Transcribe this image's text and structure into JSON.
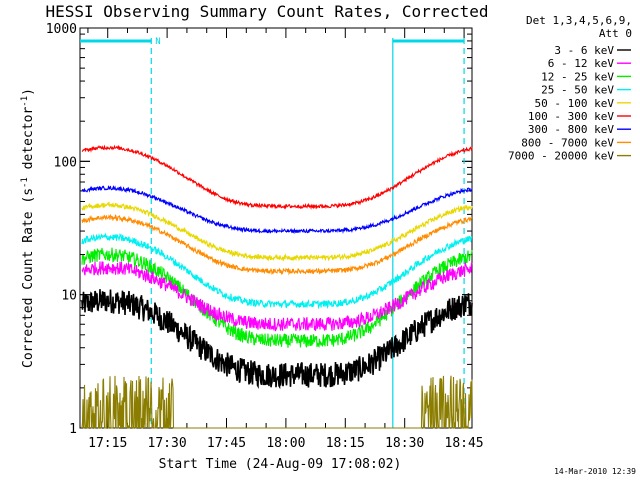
{
  "chart_data": {
    "type": "line",
    "title": "HESSI Observing Summary Count Rates, Corrected",
    "xlabel": "Start Time (24-Aug-09 17:08:02)",
    "ylabel": "Corrected Count Rate (s",
    "ylabel_sup1": "-1",
    "ylabel_mid": " detector",
    "ylabel_sup2": "-1",
    "ylabel_end": ")",
    "y_scale": "log",
    "ylim": [
      1,
      1000
    ],
    "xlim_minutes": [
      "17:08",
      "18:47"
    ],
    "x_ticks": [
      "17:15",
      "17:30",
      "17:45",
      "18:00",
      "18:15",
      "18:30",
      "18:45"
    ],
    "y_ticks": [
      "1",
      "10",
      "100",
      "1000"
    ],
    "legend": {
      "header1": "Det 1,3,4,5,6,9,",
      "header2": "Att 0",
      "placement": "right"
    },
    "flags": {
      "label": "N",
      "boundaries": [
        "17:26",
        "18:27",
        "18:45"
      ],
      "bars": [
        [
          "17:08",
          "17:26"
        ],
        [
          "18:27",
          "18:45"
        ]
      ],
      "color": "#00d8e8"
    },
    "series": [
      {
        "name": "3 - 6 keV",
        "color": "#000000",
        "peak": 9,
        "base": 2.5,
        "noise": 0.22
      },
      {
        "name": "6 - 12 keV",
        "color": "#ff00ff",
        "peak": 16,
        "base": 6,
        "noise": 0.12
      },
      {
        "name": "12 - 25 keV",
        "color": "#00ee00",
        "peak": 20,
        "base": 4.5,
        "noise": 0.12
      },
      {
        "name": "25 - 50 keV",
        "color": "#00f0f0",
        "peak": 27,
        "base": 8.5,
        "noise": 0.06
      },
      {
        "name": "50 - 100 keV",
        "color": "#e8d800",
        "peak": 47,
        "base": 19,
        "noise": 0.04
      },
      {
        "name": "100 - 300 keV",
        "color": "#ff0000",
        "peak": 127,
        "base": 46,
        "noise": 0.03
      },
      {
        "name": "300 - 800 keV",
        "color": "#0000ff",
        "peak": 63,
        "base": 30,
        "noise": 0.03
      },
      {
        "name": "800 - 7000 keV",
        "color": "#ff8c00",
        "peak": 38,
        "base": 15,
        "noise": 0.04
      },
      {
        "name": "7000 - 20000 keV",
        "color": "#8b7d00",
        "peak": 1.5,
        "base": 1.5,
        "noise": 0.3
      }
    ],
    "footer_date": "14-Mar-2010 12:39"
  }
}
